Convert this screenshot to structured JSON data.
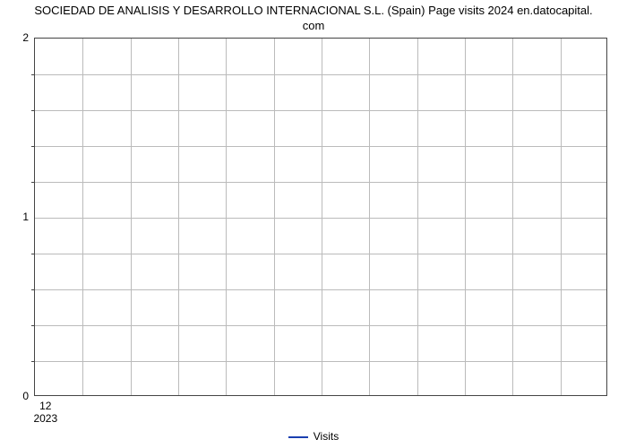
{
  "chart": {
    "type": "line",
    "title_line1": "SOCIEDAD DE ANALISIS Y DESARROLLO INTERNACIONAL S.L. (Spain) Page visits 2024 en.datocapital.",
    "title_line2": "com",
    "title_fontsize": 13,
    "title_color": "#000000",
    "background_color": "#ffffff",
    "plot_border_color": "#444444",
    "grid_color": "#bbbbbb",
    "ylim": [
      0,
      2
    ],
    "ytick_major": [
      0,
      1,
      2
    ],
    "ytick_minor_count_between": 4,
    "y_grid_count": 10,
    "x_grid_count": 12,
    "xtick": {
      "month": "12",
      "year": "2023",
      "position_fraction": 0.02
    },
    "label_fontsize": 12,
    "legend": {
      "label": "Visits",
      "line_color": "#1a3fb0"
    },
    "series": {
      "name": "Visits",
      "color": "#1a3fb0",
      "x": [],
      "y": []
    }
  }
}
